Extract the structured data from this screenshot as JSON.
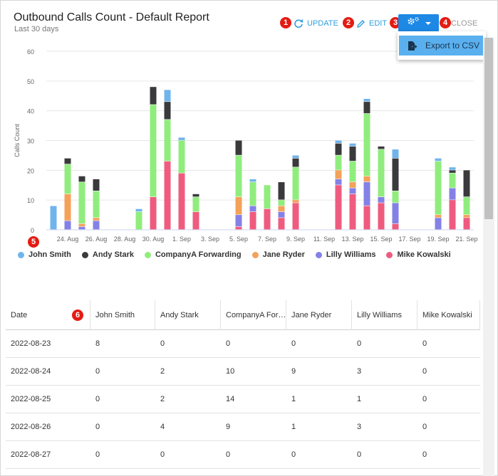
{
  "header": {
    "title": "Outbound Calls Count - Default Report",
    "subtitle": "Last 30 days"
  },
  "toolbar": {
    "update_label": "UPDATE",
    "edit_label": "EDIT",
    "close_label": "CLOSE",
    "export_label": "Export to CSV"
  },
  "badges": [
    "1",
    "2",
    "3",
    "4",
    "5",
    "6"
  ],
  "colors": {
    "John Smith": "#70b4ec",
    "Andy Stark": "#3a3a3c",
    "CompanyA Forwarding": "#90ed7d",
    "Jane Ryder": "#f4a15a",
    "Lilly Williams": "#8481e6",
    "Mike Kowalski": "#ef5b7f"
  },
  "chart_data": {
    "type": "bar",
    "stacked": true,
    "ylabel": "Calls Count",
    "ylim": [
      0,
      60
    ],
    "yticks": [
      0,
      10,
      20,
      30,
      40,
      50,
      60
    ],
    "x": [
      "2022-08-23",
      "2022-08-24",
      "2022-08-25",
      "2022-08-26",
      "2022-08-27",
      "2022-08-28",
      "2022-08-29",
      "2022-08-30",
      "2022-08-31",
      "2022-09-01",
      "2022-09-02",
      "2022-09-03",
      "2022-09-04",
      "2022-09-05",
      "2022-09-06",
      "2022-09-07",
      "2022-09-08",
      "2022-09-09",
      "2022-09-10",
      "2022-09-11",
      "2022-09-12",
      "2022-09-13",
      "2022-09-14",
      "2022-09-15",
      "2022-09-16",
      "2022-09-17",
      "2022-09-18",
      "2022-09-19",
      "2022-09-20",
      "2022-09-21"
    ],
    "tick_labels": [
      "",
      "24. Aug",
      "",
      "26. Aug",
      "",
      "28. Aug",
      "",
      "30. Aug",
      "",
      "1. Sep",
      "",
      "3. Sep",
      "",
      "5. Sep",
      "",
      "7. Sep",
      "",
      "9. Sep",
      "",
      "11. Sep",
      "",
      "13. Sep",
      "",
      "15. Sep",
      "",
      "17. Sep",
      "",
      "19. Sep",
      "",
      "21. Sep"
    ],
    "series": [
      {
        "name": "Mike Kowalski",
        "values": [
          0,
          0,
          0,
          0,
          0,
          0,
          0,
          11,
          23,
          19,
          6,
          0,
          0,
          1,
          6,
          7,
          4,
          9,
          0,
          0,
          15,
          12,
          8,
          9,
          2,
          0,
          0,
          0,
          10,
          4
        ]
      },
      {
        "name": "Lilly Williams",
        "values": [
          0,
          3,
          1,
          3,
          0,
          0,
          0,
          0,
          0,
          0,
          0,
          0,
          0,
          4,
          2,
          0,
          2,
          0,
          0,
          0,
          2,
          2,
          8,
          2,
          7,
          0,
          0,
          4,
          4,
          0
        ]
      },
      {
        "name": "Jane Ryder",
        "values": [
          0,
          9,
          1,
          1,
          0,
          0,
          0,
          0,
          0,
          0,
          0,
          0,
          0,
          6,
          0,
          0,
          2,
          1,
          0,
          0,
          3,
          2,
          2,
          0,
          0,
          0,
          0,
          1,
          0,
          1
        ]
      },
      {
        "name": "CompanyA Forwarding",
        "values": [
          0,
          10,
          14,
          9,
          0,
          0,
          6,
          31,
          14,
          11,
          5,
          0,
          0,
          14,
          8,
          8,
          2,
          11,
          0,
          0,
          5,
          7,
          21,
          16,
          4,
          0,
          0,
          18,
          5,
          6
        ]
      },
      {
        "name": "Andy Stark",
        "values": [
          0,
          2,
          2,
          4,
          0,
          0,
          0,
          6,
          6,
          0,
          1,
          0,
          0,
          5,
          0,
          0,
          6,
          3,
          0,
          0,
          4,
          5,
          4,
          1,
          11,
          0,
          0,
          0,
          1,
          9
        ]
      },
      {
        "name": "John Smith",
        "values": [
          8,
          0,
          0,
          0,
          0,
          0,
          1,
          0,
          4,
          1,
          0,
          0,
          0,
          0,
          1,
          0,
          0,
          1,
          0,
          0,
          1,
          1,
          1,
          0,
          3,
          0,
          0,
          1,
          1,
          0
        ]
      }
    ]
  },
  "legend": [
    {
      "label": "John Smith",
      "color": "#70b4ec"
    },
    {
      "label": "Andy Stark",
      "color": "#3a3a3c"
    },
    {
      "label": "CompanyA Forwarding",
      "color": "#90ed7d"
    },
    {
      "label": "Jane Ryder",
      "color": "#f4a15a"
    },
    {
      "label": "Lilly Williams",
      "color": "#8481e6"
    },
    {
      "label": "Mike Kowalski",
      "color": "#ef5b7f"
    }
  ],
  "table": {
    "headers": [
      "Date",
      "John Smith",
      "Andy Stark",
      "CompanyA For…",
      "Jane Ryder",
      "Lilly Williams",
      "Mike Kowalski"
    ],
    "rows": [
      [
        "2022-08-23",
        "8",
        "0",
        "0",
        "0",
        "0",
        "0"
      ],
      [
        "2022-08-24",
        "0",
        "2",
        "10",
        "9",
        "3",
        "0"
      ],
      [
        "2022-08-25",
        "0",
        "2",
        "14",
        "1",
        "1",
        "0"
      ],
      [
        "2022-08-26",
        "0",
        "4",
        "9",
        "1",
        "3",
        "0"
      ],
      [
        "2022-08-27",
        "0",
        "0",
        "0",
        "0",
        "0",
        "0"
      ]
    ]
  }
}
